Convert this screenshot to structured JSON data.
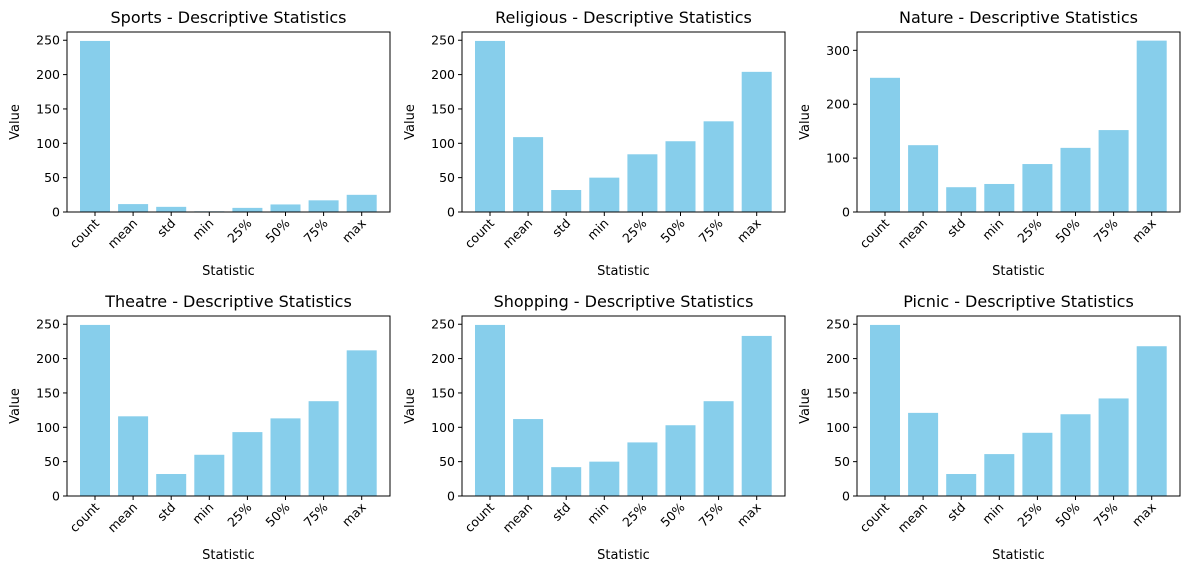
{
  "chart_data": [
    {
      "type": "bar",
      "title": "Sports - Descriptive Statistics",
      "xlabel": "Statistic",
      "ylabel": "Value",
      "categories": [
        "count",
        "mean",
        "std",
        "min",
        "25%",
        "50%",
        "75%",
        "max"
      ],
      "values": [
        249,
        11.5,
        7.5,
        1,
        6,
        11,
        17,
        25
      ],
      "ylim": [
        0,
        262
      ],
      "yticks": [
        0,
        50,
        100,
        150,
        200,
        250
      ],
      "color": "#87ceeb",
      "grid": false
    },
    {
      "type": "bar",
      "title": "Religious - Descriptive Statistics",
      "xlabel": "Statistic",
      "ylabel": "Value",
      "categories": [
        "count",
        "mean",
        "std",
        "min",
        "25%",
        "50%",
        "75%",
        "max"
      ],
      "values": [
        249,
        109,
        32,
        50,
        84,
        103,
        132,
        204
      ],
      "ylim": [
        0,
        262
      ],
      "yticks": [
        0,
        50,
        100,
        150,
        200,
        250
      ],
      "color": "#87ceeb",
      "grid": false
    },
    {
      "type": "bar",
      "title": "Nature - Descriptive Statistics",
      "xlabel": "Statistic",
      "ylabel": "Value",
      "categories": [
        "count",
        "mean",
        "std",
        "min",
        "25%",
        "50%",
        "75%",
        "max"
      ],
      "values": [
        249,
        124,
        46,
        52,
        89,
        119,
        152,
        318
      ],
      "ylim": [
        0,
        334
      ],
      "yticks": [
        0,
        100,
        200,
        300
      ],
      "color": "#87ceeb",
      "grid": false
    },
    {
      "type": "bar",
      "title": "Theatre - Descriptive Statistics",
      "xlabel": "Statistic",
      "ylabel": "Value",
      "categories": [
        "count",
        "mean",
        "std",
        "min",
        "25%",
        "50%",
        "75%",
        "max"
      ],
      "values": [
        249,
        116,
        32,
        60,
        93,
        113,
        138,
        212
      ],
      "ylim": [
        0,
        262
      ],
      "yticks": [
        0,
        50,
        100,
        150,
        200,
        250
      ],
      "color": "#87ceeb",
      "grid": false
    },
    {
      "type": "bar",
      "title": "Shopping - Descriptive Statistics",
      "xlabel": "Statistic",
      "ylabel": "Value",
      "categories": [
        "count",
        "mean",
        "std",
        "min",
        "25%",
        "50%",
        "75%",
        "max"
      ],
      "values": [
        249,
        112,
        42,
        50,
        78,
        103,
        138,
        233
      ],
      "ylim": [
        0,
        262
      ],
      "yticks": [
        0,
        50,
        100,
        150,
        200,
        250
      ],
      "color": "#87ceeb",
      "grid": false
    },
    {
      "type": "bar",
      "title": "Picnic - Descriptive Statistics",
      "xlabel": "Statistic",
      "ylabel": "Value",
      "categories": [
        "count",
        "mean",
        "std",
        "min",
        "25%",
        "50%",
        "75%",
        "max"
      ],
      "values": [
        249,
        121,
        32,
        61,
        92,
        119,
        142,
        218
      ],
      "ylim": [
        0,
        262
      ],
      "yticks": [
        0,
        50,
        100,
        150,
        200,
        250
      ],
      "color": "#87ceeb",
      "grid": false
    }
  ]
}
